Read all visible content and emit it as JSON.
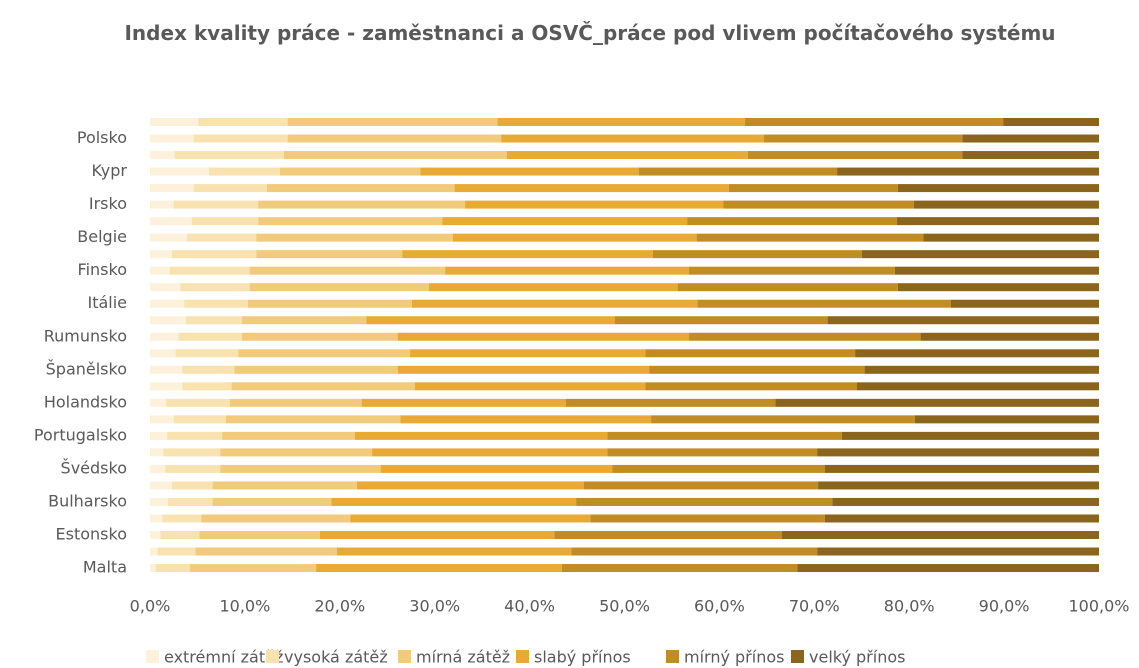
{
  "chart_data": {
    "type": "stacked_barh",
    "title": "Index kvality práce - zaměstnanci a OSVČ_práce pod vlivem počítačového systému",
    "categories": [
      null,
      "Polsko",
      null,
      "Kypr",
      null,
      "Irsko",
      null,
      "Belgie",
      null,
      "Finsko",
      null,
      "Itálie",
      null,
      "Rumunsko",
      null,
      "Španělsko",
      null,
      "Holandsko",
      null,
      "Portugalsko",
      null,
      "Švédsko",
      null,
      "Bulharsko",
      null,
      "Estonsko",
      null,
      "Malta"
    ],
    "series": [
      {
        "name": "extrémní zátěž",
        "color": "#fdf1dc",
        "values": [
          5.1,
          4.6,
          2.6,
          6.2,
          4.6,
          2.5,
          4.4,
          3.9,
          2.3,
          2.1,
          3.2,
          3.6,
          3.8,
          3.0,
          2.7,
          3.4,
          3.4,
          1.7,
          2.5,
          1.8,
          1.4,
          1.6,
          2.3,
          1.9,
          1.3,
          1.1,
          0.8,
          0.6
        ]
      },
      {
        "name": "vysoká zátěž",
        "color": "#f8e2b0",
        "values": [
          9.4,
          9.9,
          11.5,
          7.5,
          7.7,
          8.9,
          7.0,
          7.3,
          8.9,
          8.4,
          7.3,
          6.7,
          5.9,
          6.7,
          6.6,
          5.5,
          5.2,
          6.7,
          5.5,
          5.8,
          6.0,
          5.8,
          4.3,
          4.7,
          4.1,
          4.1,
          4.0,
          3.6
        ]
      },
      {
        "name": "mírná zátěž",
        "color": "#f2ca7c",
        "values": [
          22.1,
          22.5,
          23.5,
          14.8,
          19.8,
          21.8,
          19.4,
          20.7,
          15.4,
          20.6,
          18.9,
          17.3,
          13.1,
          16.4,
          18.1,
          17.2,
          19.3,
          13.9,
          18.4,
          14.0,
          16.0,
          16.9,
          15.2,
          12.5,
          15.7,
          12.7,
          14.9,
          13.3
        ]
      },
      {
        "name": "slabý přínos",
        "color": "#e9a935",
        "values": [
          26.1,
          27.7,
          25.4,
          23.0,
          28.9,
          27.2,
          25.8,
          25.7,
          26.4,
          25.7,
          26.2,
          30.1,
          26.2,
          30.7,
          24.8,
          26.5,
          24.3,
          21.5,
          26.4,
          26.6,
          24.8,
          24.4,
          23.9,
          25.8,
          25.3,
          24.7,
          24.7,
          25.9
        ]
      },
      {
        "name": "mírný přínos",
        "color": "#c28c24",
        "values": [
          27.2,
          20.9,
          22.6,
          20.9,
          17.8,
          20.1,
          22.1,
          23.9,
          22.0,
          21.7,
          23.2,
          26.7,
          22.4,
          24.4,
          22.1,
          22.7,
          22.3,
          22.1,
          27.8,
          24.7,
          22.1,
          22.4,
          24.7,
          27.0,
          24.7,
          24.0,
          25.9,
          24.8
        ]
      },
      {
        "name": "velký přínos",
        "color": "#8b651e",
        "values": [
          10.1,
          14.4,
          14.4,
          27.6,
          21.2,
          19.5,
          21.3,
          18.5,
          25.0,
          21.5,
          21.2,
          15.6,
          28.6,
          18.8,
          25.7,
          24.7,
          25.5,
          34.1,
          19.4,
          27.1,
          29.7,
          28.9,
          29.6,
          28.1,
          28.9,
          33.4,
          29.7,
          31.8
        ]
      }
    ],
    "xlim": [
      0,
      100
    ],
    "xticks": [
      {
        "value": 0,
        "label": "0,0%"
      },
      {
        "value": 10,
        "label": "10,0%"
      },
      {
        "value": 20,
        "label": "20,0%"
      },
      {
        "value": 30,
        "label": "30,0%"
      },
      {
        "value": 40,
        "label": "40,0%"
      },
      {
        "value": 50,
        "label": "50,0%"
      },
      {
        "value": 60,
        "label": "60,0%"
      },
      {
        "value": 70,
        "label": "70,0%"
      },
      {
        "value": 80,
        "label": "80,0%"
      },
      {
        "value": 90,
        "label": "90,0%"
      },
      {
        "value": 100,
        "label": "100,0%"
      }
    ],
    "grid": false,
    "legend": "bottom"
  }
}
